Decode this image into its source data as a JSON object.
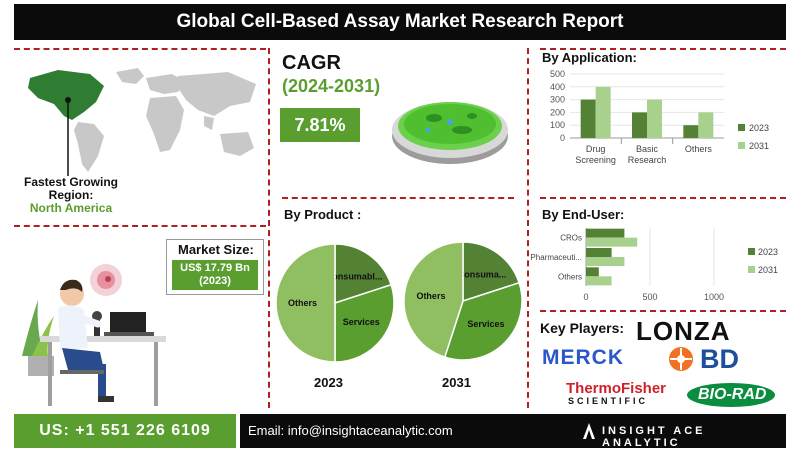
{
  "title": "Global Cell-Based Assay Market Research Report",
  "cagr": {
    "label": "CAGR",
    "period": "(2024-2031)",
    "value": "7.81%"
  },
  "region": {
    "label": "Fastest Growing Region:",
    "value": "North America"
  },
  "market_size": {
    "label": "Market Size:",
    "value": "US$ 17.79 Bn (2023)"
  },
  "colors": {
    "green": "#5a9e2f",
    "light_green": "#a9d18e",
    "dark_green": "#548235",
    "pie_light": "#8fbf60",
    "black": "#0b0b0b",
    "dash": "#b02020"
  },
  "key_players": {
    "title": "Key Players:",
    "logos": [
      "LONZA",
      "MERCK",
      "BD",
      "ThermoFisher",
      "SCIENTIFIC",
      "BIO-RAD"
    ]
  },
  "footer": {
    "phone": "US: +1 551 226 6109",
    "email": "Email: info@insightaceanalytic.com",
    "brand": "INSIGHT ACE ANALYTIC"
  },
  "chart_data": [
    {
      "type": "bar",
      "title": "By Application:",
      "categories": [
        "Drug Screening",
        "Basic Research",
        "Others"
      ],
      "category_lines": [
        [
          "Drug",
          "Screening"
        ],
        [
          "Basic",
          "Research"
        ],
        [
          "Others"
        ]
      ],
      "series": [
        {
          "name": "2023",
          "values": [
            300,
            200,
            100
          ]
        },
        {
          "name": "2031",
          "values": [
            400,
            300,
            200
          ]
        }
      ],
      "ylim": [
        0,
        500
      ],
      "yticks": [
        0,
        100,
        200,
        300,
        400,
        500
      ],
      "legend": "right"
    },
    {
      "type": "pie",
      "title": "By Product :",
      "year": "2023",
      "slices": [
        {
          "label": "Consumabl...",
          "value": 20
        },
        {
          "label": "Services",
          "value": 30
        },
        {
          "label": "Others",
          "value": 50
        }
      ]
    },
    {
      "type": "pie",
      "year": "2031",
      "slices": [
        {
          "label": "Consuma...",
          "value": 20
        },
        {
          "label": "Services",
          "value": 35
        },
        {
          "label": "Others",
          "value": 45
        }
      ]
    },
    {
      "type": "bar",
      "orientation": "horizontal",
      "title": "By End-User:",
      "categories": [
        "CROs",
        "Pharmaceuti...",
        "Others"
      ],
      "series": [
        {
          "name": "2023",
          "values": [
            300,
            200,
            100
          ]
        },
        {
          "name": "2031",
          "values": [
            400,
            300,
            200
          ]
        }
      ],
      "xlim": [
        0,
        1000
      ],
      "xticks": [
        0,
        500,
        1000
      ],
      "legend": "right"
    }
  ]
}
